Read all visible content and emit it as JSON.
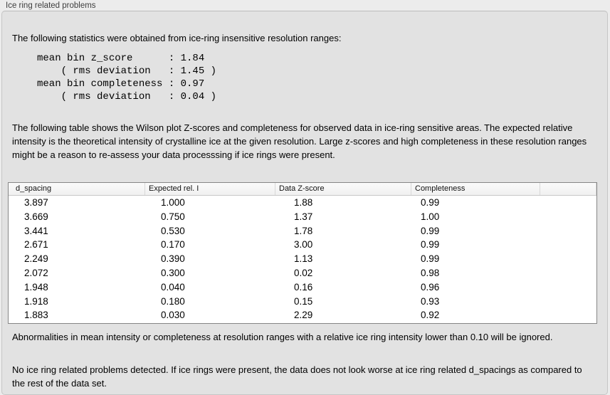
{
  "panel": {
    "title": "Ice ring related problems"
  },
  "intro": {
    "text": "The following statistics were obtained from ice-ring insensitive resolution ranges:"
  },
  "stats": {
    "lines": [
      "mean bin z_score      : 1.84",
      "    ( rms deviation   : 1.45 )",
      "mean bin completeness : 0.97",
      "    ( rms deviation   : 0.04 )"
    ]
  },
  "description": {
    "text": "The following table shows the Wilson plot Z-scores and completeness for observed data in ice-ring sensitive areas. The expected relative intensity is the theoretical intensity of crystalline ice at the given resolution. Large z-scores and high completeness in these resolution ranges might be a reason to re-assess your data processsing if ice rings were present."
  },
  "table": {
    "columns": [
      "d_spacing",
      "Expected rel. I",
      "Data Z-score",
      "Completeness"
    ],
    "rows": [
      [
        "3.897",
        "1.000",
        "1.88",
        "0.99"
      ],
      [
        "3.669",
        "0.750",
        "1.37",
        "1.00"
      ],
      [
        "3.441",
        "0.530",
        "1.78",
        "0.99"
      ],
      [
        "2.671",
        "0.170",
        "3.00",
        "0.99"
      ],
      [
        "2.249",
        "0.390",
        "1.13",
        "0.99"
      ],
      [
        "2.072",
        "0.300",
        "0.02",
        "0.98"
      ],
      [
        "1.948",
        "0.040",
        "0.16",
        "0.96"
      ],
      [
        "1.918",
        "0.180",
        "0.15",
        "0.93"
      ],
      [
        "1.883",
        "0.030",
        "2.29",
        "0.92"
      ]
    ]
  },
  "notes": {
    "ignore_note": "Abnormalities in mean intensity or completeness at resolution ranges with a relative ice ring intensity lower than 0.10 will be ignored.",
    "conclusion": "No ice ring related problems detected. If ice rings were present, the data does not look worse at ice ring related d_spacings as compared to the rest of the data set."
  },
  "colors": {
    "page_bg": "#ececec",
    "box_bg": "#e2e2e2",
    "box_border": "#c6c6c6",
    "table_border": "#868686",
    "header_bg": "#f5f5f5",
    "text": "#000000"
  }
}
